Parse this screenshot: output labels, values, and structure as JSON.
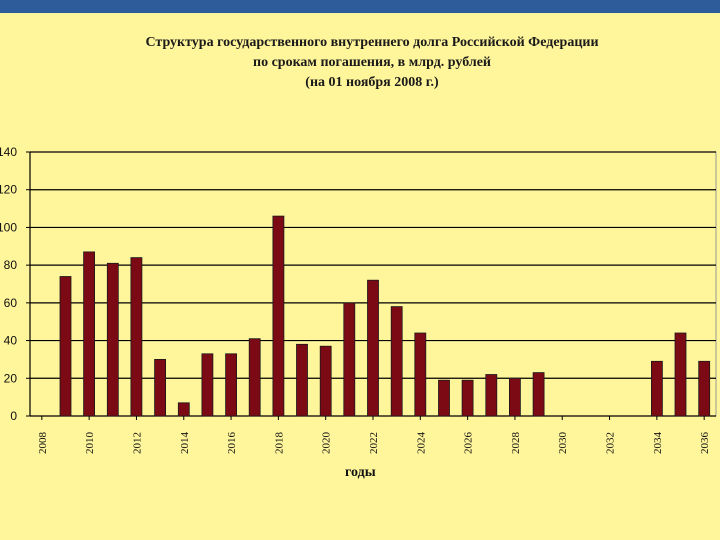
{
  "chart_data": {
    "type": "bar",
    "title_lines": [
      "Структура государственного внутреннего долга Российской Федерации",
      "по срокам погашения, в млрд. рублей",
      "(на 01 ноября 2008 г.)"
    ],
    "xlabel": "годы",
    "ylabel": "",
    "ylim": [
      0,
      140
    ],
    "yticks": [
      "0",
      "20",
      "40",
      "60",
      "80",
      "100",
      "120",
      "140"
    ],
    "xtick_labels": [
      "2008",
      "2010",
      "2012",
      "2014",
      "2016",
      "2018",
      "2020",
      "2022",
      "2024",
      "2026",
      "2028",
      "2030",
      "2032",
      "2034",
      "2036"
    ],
    "categories": [
      "2009",
      "2010",
      "2011",
      "2012",
      "2013",
      "2014",
      "2015",
      "2016",
      "2017",
      "2018",
      "2019",
      "2020",
      "2021",
      "2022",
      "2023",
      "2024",
      "2025",
      "2026",
      "2027",
      "2028",
      "2029",
      "2030",
      "2031",
      "2032",
      "2033",
      "2034",
      "2035",
      "2036"
    ],
    "values": [
      74,
      87,
      81,
      84,
      30,
      7,
      33,
      33,
      41,
      106,
      38,
      37,
      60,
      72,
      58,
      44,
      19,
      19,
      22,
      20,
      23,
      0,
      0,
      0,
      0,
      29,
      44,
      29
    ],
    "bar_color": "#7B0A14",
    "grid": true
  }
}
